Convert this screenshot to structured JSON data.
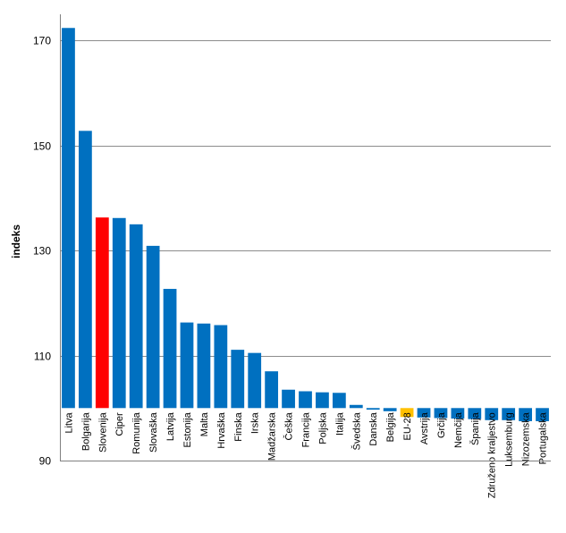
{
  "chart_data": {
    "type": "bar",
    "title": "",
    "xlabel": "",
    "ylabel": "indeks",
    "ylim": [
      90,
      175
    ],
    "yticks": [
      90,
      110,
      130,
      150,
      170
    ],
    "grid": true,
    "legend": "none",
    "categories": [
      "Litva",
      "Bolgarija",
      "Slovenija",
      "Ciper",
      "Romunija",
      "Slovaška",
      "Latvija",
      "Estonija",
      "Malta",
      "Hrvaška",
      "Finska",
      "Irska",
      "Madžarska",
      "Češka",
      "Francija",
      "Poljska",
      "Italija",
      "Švedska",
      "Danska",
      "Belgija",
      "EU-28",
      "Avstrija",
      "Grčija",
      "Nemčija",
      "Španija",
      "Združeno kraljestvo",
      "Luksemburg",
      "Nizozemska",
      "Portugalska"
    ],
    "values": [
      172.4,
      152.8,
      136.3,
      136.2,
      135.0,
      130.9,
      122.7,
      116.3,
      116.1,
      115.8,
      111.1,
      110.5,
      107.0,
      103.5,
      103.2,
      103.0,
      102.9,
      100.6,
      99.7,
      99.4,
      98.3,
      98.2,
      98.1,
      98.0,
      97.9,
      97.7,
      97.7,
      97.5,
      97.5
    ],
    "colors": {
      "default": "#0070C0",
      "Slovenija": "#FF0000",
      "EU-28": "#FFC000"
    }
  }
}
